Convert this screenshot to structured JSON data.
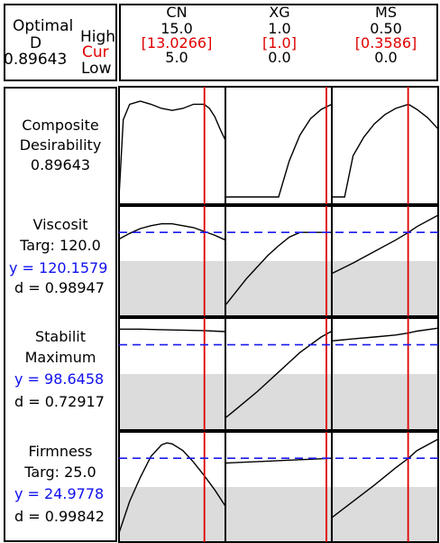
{
  "header": {
    "optimal_label": "Optimal",
    "d_label": "D",
    "d_value": "0.89643",
    "high_label": "High",
    "cur_label": "Cur",
    "low_label": "Low"
  },
  "colors": {
    "current": "#e00000",
    "prediction": "#1010ee",
    "target_line": "#1a1aee",
    "shade": "#dcdcdc",
    "curve": "#000000"
  },
  "chart_data": {
    "type": "line",
    "title": "",
    "factors": [
      {
        "name": "CN",
        "high": "15.0",
        "cur": "[13.0266]",
        "low": "5.0",
        "high_value": 15.0,
        "cur_value": 13.0266,
        "low_value": 5.0
      },
      {
        "name": "XG",
        "high": "1.0",
        "cur": "[1.0]",
        "low": "0.0",
        "high_value": 1.0,
        "cur_value": 1.0,
        "low_value": 0.0
      },
      {
        "name": "MS",
        "high": "0.50",
        "cur": "[0.3586]",
        "low": "0.0",
        "high_value": 0.5,
        "cur_value": 0.3586,
        "low_value": 0.0
      }
    ],
    "rows": [
      {
        "title": "Composite Desirability",
        "line1": "Composite",
        "line2": "Desirability",
        "value": "0.89643",
        "kind": "composite",
        "panels": [
          {
            "x": [
              5,
              5.4,
              6,
              7,
              8,
              9,
              10,
              11,
              12,
              13,
              13.5,
              14,
              14.5,
              15
            ],
            "y": [
              0.0,
              0.75,
              0.9,
              0.93,
              0.9,
              0.86,
              0.84,
              0.86,
              0.9,
              0.9,
              0.86,
              0.78,
              0.66,
              0.55
            ]
          },
          {
            "x": [
              0,
              0.25,
              0.5,
              0.6,
              0.7,
              0.8,
              0.9,
              1.0
            ],
            "y": [
              0.0,
              0.0,
              0.0,
              0.35,
              0.6,
              0.76,
              0.85,
              0.9
            ]
          },
          {
            "x": [
              0,
              0.06,
              0.1,
              0.15,
              0.2,
              0.25,
              0.3,
              0.36,
              0.4,
              0.45,
              0.5
            ],
            "y": [
              0.0,
              0.0,
              0.4,
              0.58,
              0.71,
              0.8,
              0.86,
              0.9,
              0.85,
              0.77,
              0.66
            ]
          }
        ]
      },
      {
        "title": "Viscosit",
        "line1": "Viscosit",
        "line2": "Targ: 120.0",
        "pred": "y = 120.1579",
        "d": "d = 0.98947",
        "kind": "response",
        "panels": [
          {
            "x": [
              5,
              6,
              7,
              8,
              9,
              10,
              11,
              12,
              13,
              14,
              15
            ],
            "y": [
              0.73,
              0.79,
              0.84,
              0.87,
              0.89,
              0.89,
              0.87,
              0.85,
              0.81,
              0.77,
              0.72
            ]
          },
          {
            "x": [
              0,
              0.1,
              0.2,
              0.3,
              0.4,
              0.5,
              0.6,
              0.7,
              0.75,
              0.8,
              1.0
            ],
            "y": [
              0.04,
              0.18,
              0.32,
              0.44,
              0.56,
              0.66,
              0.75,
              0.8,
              0.8,
              0.8,
              0.8
            ]
          },
          {
            "x": [
              0,
              0.1,
              0.2,
              0.3,
              0.36,
              0.4,
              0.5
            ],
            "y": [
              0.37,
              0.48,
              0.6,
              0.72,
              0.8,
              0.86,
              0.98
            ]
          }
        ]
      },
      {
        "title": "Stabilit",
        "line1": "Stabilit",
        "line2": "Maximum",
        "pred": "y = 98.6458",
        "d": "d = 0.72917",
        "kind": "response",
        "panels": [
          {
            "x": [
              5,
              7,
              9,
              11,
              13,
              14,
              15
            ],
            "y": [
              0.96,
              0.96,
              0.955,
              0.95,
              0.945,
              0.94,
              0.935
            ]
          },
          {
            "x": [
              0,
              0.1,
              0.2,
              0.3,
              0.4,
              0.5,
              0.6,
              0.7,
              0.8,
              0.9,
              1.0
            ],
            "y": [
              0.05,
              0.14,
              0.23,
              0.32,
              0.42,
              0.52,
              0.62,
              0.72,
              0.8,
              0.88,
              0.94
            ]
          },
          {
            "x": [
              0,
              0.1,
              0.2,
              0.3,
              0.36,
              0.4,
              0.5
            ],
            "y": [
              0.84,
              0.86,
              0.88,
              0.9,
              0.92,
              0.94,
              0.97
            ]
          }
        ]
      },
      {
        "title": "Firmness",
        "line1": "Firmness",
        "line2": "Targ: 25.0",
        "pred": "y = 24.9778",
        "d": "d = 0.99842",
        "kind": "response",
        "panels": [
          {
            "x": [
              5,
              6,
              7,
              8,
              9,
              9.5,
              10,
              11,
              12,
              13,
              14,
              15
            ],
            "y": [
              0.02,
              0.35,
              0.6,
              0.82,
              0.94,
              0.96,
              0.95,
              0.88,
              0.76,
              0.62,
              0.47,
              0.3
            ]
          },
          {
            "x": [
              0,
              0.2,
              0.4,
              0.6,
              0.8,
              1.0
            ],
            "y": [
              0.75,
              0.76,
              0.77,
              0.78,
              0.79,
              0.8
            ]
          },
          {
            "x": [
              0,
              0.1,
              0.2,
              0.3,
              0.36,
              0.4,
              0.5
            ],
            "y": [
              0.18,
              0.35,
              0.52,
              0.7,
              0.8,
              0.88,
              1.0
            ]
          }
        ]
      }
    ],
    "target_level": 0.8,
    "shade_level": 0.5
  }
}
